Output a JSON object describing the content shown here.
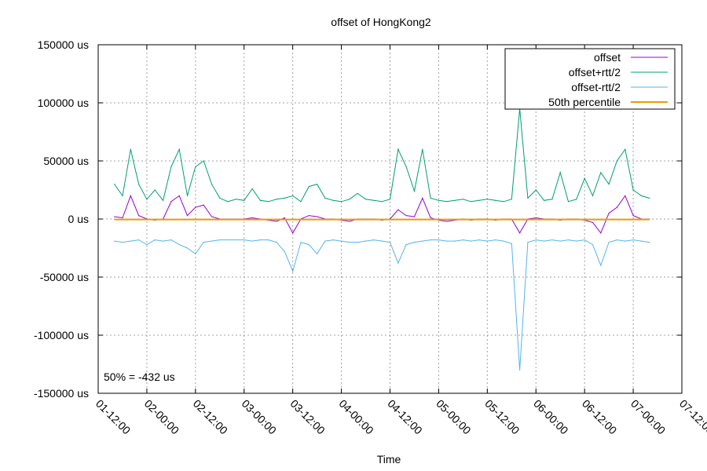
{
  "chart_data": {
    "type": "line",
    "title": "offset of HongKong2",
    "xlabel": "Time",
    "ylabel": "",
    "ylim": [
      -150000,
      150000
    ],
    "xlim_hours_from_first_tick": [
      0,
      144
    ],
    "y_ticks": [
      150000,
      100000,
      50000,
      0,
      -50000,
      -100000,
      -150000
    ],
    "y_tick_labels": [
      "150000 us",
      "100000 us",
      "50000 us",
      "0 us",
      "-50000 us",
      "-100000 us",
      "-150000 us"
    ],
    "x_tick_hours": [
      0,
      12,
      24,
      36,
      48,
      60,
      72,
      84,
      96,
      108,
      120,
      132,
      144
    ],
    "x_tick_labels": [
      "01-12:00",
      "02-00:00",
      "02-12:00",
      "03-00:00",
      "03-12:00",
      "04-00:00",
      "04-12:00",
      "05-00:00",
      "05-12:00",
      "06-00:00",
      "06-12:00",
      "07-00:00",
      "07-12:00"
    ],
    "grid": true,
    "legend_position": "top-right",
    "annotation": "50% = -432 us",
    "x_hours": [
      4,
      6,
      8,
      10,
      12,
      14,
      16,
      18,
      20,
      22,
      24,
      26,
      28,
      30,
      32,
      34,
      36,
      38,
      40,
      42,
      44,
      46,
      48,
      50,
      52,
      54,
      56,
      58,
      60,
      62,
      64,
      66,
      68,
      70,
      72,
      74,
      76,
      78,
      80,
      82,
      84,
      86,
      88,
      90,
      92,
      94,
      96,
      98,
      100,
      102,
      104,
      106,
      108,
      110,
      112,
      114,
      116,
      118,
      120,
      122,
      124,
      126,
      128,
      130,
      132,
      134,
      136
    ],
    "series": [
      {
        "name": "offset",
        "color": "#9400d3",
        "values": [
          2000,
          1000,
          20000,
          3000,
          0,
          -1000,
          0,
          15000,
          20000,
          3000,
          10000,
          12000,
          2000,
          0,
          0,
          0,
          0,
          1000,
          0,
          -1000,
          -2000,
          1000,
          -12000,
          0,
          3000,
          2000,
          0,
          0,
          -1000,
          -2000,
          0,
          0,
          0,
          -1000,
          0,
          8000,
          3000,
          2000,
          18000,
          1000,
          -1000,
          -2000,
          -1000,
          0,
          -1000,
          0,
          0,
          -1000,
          0,
          0,
          -12000,
          0,
          1000,
          0,
          0,
          -1000,
          0,
          0,
          -1000,
          -3000,
          -12000,
          5000,
          10000,
          20000,
          3000,
          0,
          0
        ]
      },
      {
        "name": "offset+rtt/2",
        "color": "#009e73",
        "values": [
          30000,
          20000,
          60000,
          30000,
          17000,
          25000,
          16000,
          45000,
          60000,
          20000,
          45000,
          50000,
          30000,
          18000,
          15000,
          17000,
          16000,
          26000,
          16000,
          15000,
          17000,
          18000,
          20000,
          15000,
          28000,
          30000,
          18000,
          16000,
          15000,
          17000,
          22000,
          17000,
          16000,
          15000,
          17000,
          60000,
          45000,
          24000,
          60000,
          18000,
          16000,
          15000,
          16000,
          17000,
          15000,
          16000,
          17000,
          16000,
          15000,
          17000,
          95000,
          18000,
          25000,
          16000,
          17000,
          40000,
          15000,
          17000,
          35000,
          20000,
          40000,
          30000,
          50000,
          60000,
          25000,
          20000,
          18000
        ]
      },
      {
        "name": "offset-rtt/2",
        "color": "#56b4e9",
        "values": [
          -19000,
          -20000,
          -19000,
          -18000,
          -22000,
          -18000,
          -19000,
          -18000,
          -22000,
          -25000,
          -30000,
          -20000,
          -19000,
          -18000,
          -18000,
          -18000,
          -18000,
          -19000,
          -18000,
          -18000,
          -20000,
          -28000,
          -45000,
          -20000,
          -22000,
          -30000,
          -19000,
          -18000,
          -19000,
          -20000,
          -20000,
          -19000,
          -18000,
          -19000,
          -20000,
          -38000,
          -22000,
          -20000,
          -19000,
          -18000,
          -18000,
          -19000,
          -19000,
          -18000,
          -19000,
          -18000,
          -19000,
          -18000,
          -19000,
          -21000,
          -130000,
          -20000,
          -18000,
          -19000,
          -18000,
          -19000,
          -18000,
          -19000,
          -18000,
          -22000,
          -40000,
          -20000,
          -18000,
          -19000,
          -18000,
          -19000,
          -20000
        ]
      },
      {
        "name": "50th percentile",
        "color": "#e69f00",
        "constant": -432
      }
    ]
  }
}
